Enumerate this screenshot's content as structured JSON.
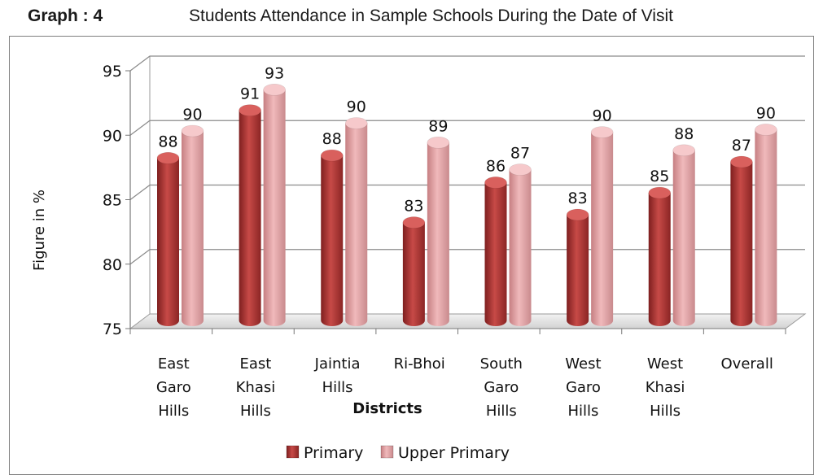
{
  "header": {
    "graph_label": "Graph : 4",
    "title": "Students Attendance in Sample Schools During the Date of Visit"
  },
  "chart_data": {
    "type": "bar",
    "title": "Students Attendance in Sample Schools During the Date of Visit",
    "xlabel": "Districts",
    "ylabel": "Figure in %",
    "ylim": [
      75,
      95
    ],
    "yticks": [
      75,
      80,
      85,
      90,
      95
    ],
    "grid": true,
    "legend_position": "bottom",
    "categories": [
      [
        "East",
        "Garo",
        "Hills"
      ],
      [
        "East",
        "Khasi",
        "Hills"
      ],
      [
        "Jaintia",
        "Hills"
      ],
      [
        "Ri-Bhoi"
      ],
      [
        "South",
        "Garo",
        "Hills"
      ],
      [
        "West",
        "Garo",
        "Hills"
      ],
      [
        "West",
        "Khasi",
        "Hills"
      ],
      [
        "Overall"
      ]
    ],
    "series": [
      {
        "name": "Primary",
        "color": "#b8403f",
        "values": [
          87.6,
          91.3,
          87.8,
          82.6,
          85.7,
          83.2,
          84.9,
          87.3
        ],
        "labels": [
          "88",
          "91",
          "88",
          "83",
          "86",
          "83",
          "85",
          "87"
        ]
      },
      {
        "name": "Upper Primary",
        "color": "#e5a0a2",
        "values": [
          89.7,
          92.9,
          90.3,
          88.8,
          86.7,
          89.6,
          88.2,
          89.8
        ],
        "labels": [
          "90",
          "93",
          "90",
          "89",
          "87",
          "90",
          "88",
          "90"
        ]
      }
    ]
  }
}
